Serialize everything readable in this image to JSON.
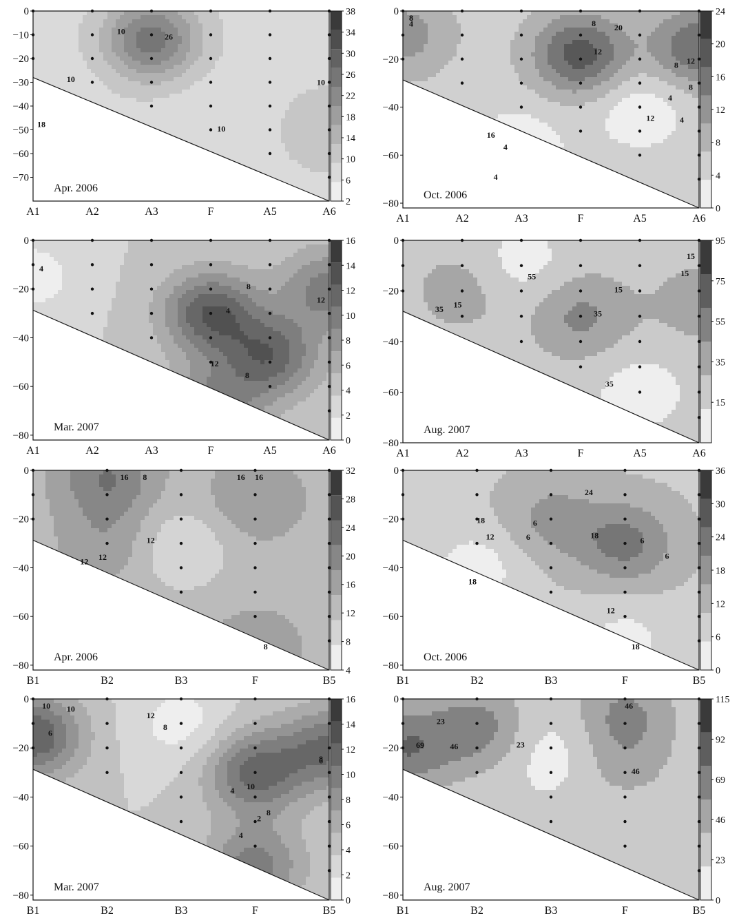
{
  "figure": {
    "colors": {
      "frame": "#111111",
      "contour": "#1a1a1a",
      "dot": "#111111",
      "shade_light": "#eeeeee",
      "shade_dark": "#3a3a3a"
    }
  },
  "chart_data": [
    {
      "type": "heatmap",
      "subtype": "filled-contour",
      "title": "Apr. 2006",
      "transect": "A",
      "stations": [
        "A1",
        "A2",
        "A3",
        "F",
        "A5",
        "A6"
      ],
      "ylim": [
        -80,
        0
      ],
      "yticks": [
        "0",
        "−10",
        "−20",
        "−30",
        "−40",
        "−50",
        "−60",
        "−70"
      ],
      "yticks_values": [
        0,
        -10,
        -20,
        -30,
        -40,
        -50,
        -60,
        -70
      ],
      "colorbar": {
        "levels": [
          2,
          6,
          10,
          14,
          18,
          22,
          26,
          30,
          34,
          38
        ],
        "labels": [
          "2",
          "6",
          "10",
          "14",
          "18",
          "22",
          "26",
          "30",
          "34",
          "38"
        ]
      },
      "contour_labels": [
        "26",
        "18",
        "10",
        "10",
        "10",
        "10"
      ],
      "peaks": [
        {
          "station": "A3",
          "depth": -12,
          "value": 28
        },
        {
          "station": "A1",
          "depth": -40,
          "value": 6
        },
        {
          "station": "A6",
          "depth": -50,
          "value": 14
        },
        {
          "station": "F",
          "depth": -45,
          "value": 6
        }
      ],
      "background": 8
    },
    {
      "type": "heatmap",
      "subtype": "filled-contour",
      "title": "Oct. 2006",
      "transect": "A",
      "stations": [
        "A1",
        "A2",
        "A3",
        "F",
        "A5",
        "A6"
      ],
      "ylim": [
        -82,
        0
      ],
      "yticks": [
        "0",
        "−20",
        "−40",
        "−60",
        "−80"
      ],
      "yticks_values": [
        0,
        -20,
        -40,
        -60,
        -80
      ],
      "colorbar": {
        "levels": [
          0,
          4,
          8,
          12,
          16,
          20,
          24
        ],
        "labels": [
          "0",
          "4",
          "8",
          "12",
          "16",
          "20",
          "24"
        ]
      },
      "contour_labels": [
        "12",
        "8",
        "8",
        "12",
        "16",
        "20",
        "12",
        "8",
        "4",
        "4",
        "8",
        "8",
        "4",
        "4",
        "4"
      ],
      "peaks": [
        {
          "station": "F",
          "depth": -18,
          "value": 22
        },
        {
          "station": "A6",
          "depth": -15,
          "value": 20
        },
        {
          "station": "A1",
          "depth": -10,
          "value": 14
        },
        {
          "station": "A5",
          "depth": -40,
          "value": 1
        },
        {
          "station": "A3",
          "depth": -55,
          "value": 2
        }
      ],
      "background": 6
    },
    {
      "type": "heatmap",
      "subtype": "filled-contour",
      "title": "Mar. 2007",
      "transect": "A",
      "stations": [
        "A1",
        "A2",
        "A3",
        "F",
        "A5",
        "A6"
      ],
      "ylim": [
        -82,
        0
      ],
      "yticks": [
        "0",
        "−20",
        "−40",
        "−60",
        "−80"
      ],
      "yticks_values": [
        0,
        -20,
        -40,
        -60,
        -80
      ],
      "colorbar": {
        "levels": [
          0,
          2,
          4,
          6,
          8,
          10,
          12,
          14,
          16
        ],
        "labels": [
          "0",
          "2",
          "4",
          "6",
          "8",
          "10",
          "12",
          "14",
          "16"
        ]
      },
      "contour_labels": [
        "4",
        "8",
        "12",
        "12",
        "4",
        "8"
      ],
      "peaks": [
        {
          "station": "F",
          "depth": -30,
          "value": 14
        },
        {
          "station": "A5",
          "depth": -48,
          "value": 13
        },
        {
          "station": "F",
          "depth": -70,
          "value": 11
        },
        {
          "station": "A6",
          "depth": -20,
          "value": 11
        },
        {
          "station": "A1",
          "depth": -15,
          "value": 1
        }
      ],
      "background": 4
    },
    {
      "type": "heatmap",
      "subtype": "filled-contour",
      "title": "Aug. 2007",
      "transect": "A",
      "stations": [
        "A1",
        "A2",
        "A3",
        "F",
        "A5",
        "A6"
      ],
      "ylim": [
        -80,
        0
      ],
      "yticks": [
        "0",
        "−20",
        "−40",
        "−60",
        "−80"
      ],
      "yticks_values": [
        0,
        -20,
        -40,
        -60,
        -80
      ],
      "colorbar": {
        "levels": [
          5,
          15,
          35,
          55,
          75,
          95
        ],
        "labels": [
          "15",
          "35",
          "55",
          "75",
          "95"
        ]
      },
      "contour_labels": [
        "35",
        "35",
        "15",
        "55",
        "35",
        "15",
        "15",
        "15"
      ],
      "peaks": [
        {
          "station": "F",
          "depth": -30,
          "value": 60
        },
        {
          "station": "A2",
          "depth": -20,
          "value": 45
        },
        {
          "station": "A6",
          "depth": -25,
          "value": 45
        },
        {
          "station": "A3",
          "depth": -10,
          "value": 5
        },
        {
          "station": "A5",
          "depth": -60,
          "value": 5
        }
      ],
      "background": 25
    },
    {
      "type": "heatmap",
      "subtype": "filled-contour",
      "title": "Apr. 2006",
      "transect": "B",
      "stations": [
        "B1",
        "B2",
        "B3",
        "F",
        "B5"
      ],
      "ylim": [
        -82,
        0
      ],
      "yticks": [
        "0",
        "−20",
        "−40",
        "−60",
        "−80"
      ],
      "yticks_values": [
        0,
        -20,
        -40,
        -60,
        -80
      ],
      "colorbar": {
        "levels": [
          4,
          8,
          12,
          16,
          20,
          24,
          28,
          32
        ],
        "labels": [
          "4",
          "8",
          "12",
          "16",
          "20",
          "24",
          "28",
          "32"
        ]
      },
      "contour_labels": [
        "16",
        "12",
        "16",
        "8",
        "12",
        "8",
        "12",
        "16"
      ],
      "peaks": [
        {
          "station": "B2",
          "depth": -3,
          "value": 24
        },
        {
          "station": "B2",
          "depth": -30,
          "value": 19
        },
        {
          "station": "F",
          "depth": -12,
          "value": 20
        },
        {
          "station": "F",
          "depth": -73,
          "value": 19
        },
        {
          "station": "B3",
          "depth": -32,
          "value": 8
        }
      ],
      "background": 14
    },
    {
      "type": "heatmap",
      "subtype": "filled-contour",
      "title": "Oct. 2006",
      "transect": "B",
      "stations": [
        "B1",
        "B2",
        "B3",
        "F",
        "B5"
      ],
      "ylim": [
        -82,
        0
      ],
      "yticks": [
        "0",
        "−20",
        "−40",
        "−60",
        "−80"
      ],
      "yticks_values": [
        0,
        -20,
        -40,
        -60,
        -80
      ],
      "colorbar": {
        "levels": [
          0,
          6,
          12,
          18,
          24,
          30,
          36
        ],
        "labels": [
          "0",
          "6",
          "12",
          "18",
          "24",
          "30",
          "36"
        ]
      },
      "contour_labels": [
        "6",
        "6",
        "18",
        "18",
        "18",
        "24",
        "18",
        "12",
        "6",
        "6",
        "12"
      ],
      "peaks": [
        {
          "station": "F",
          "depth": -30,
          "value": 26
        },
        {
          "station": "B3",
          "depth": -20,
          "value": 20
        },
        {
          "station": "B2",
          "depth": -40,
          "value": 3
        },
        {
          "station": "F",
          "depth": -70,
          "value": 4
        }
      ],
      "background": 11
    },
    {
      "type": "heatmap",
      "subtype": "filled-contour",
      "title": "Mar. 2007",
      "transect": "B",
      "stations": [
        "B1",
        "B2",
        "B3",
        "F",
        "B5"
      ],
      "ylim": [
        -82,
        0
      ],
      "yticks": [
        "0",
        "−20",
        "−40",
        "−60",
        "−80"
      ],
      "yticks_values": [
        0,
        -20,
        -40,
        -60,
        -80
      ],
      "colorbar": {
        "levels": [
          0,
          2,
          4,
          6,
          8,
          10,
          12,
          14,
          16
        ],
        "labels": [
          "0",
          "2",
          "4",
          "6",
          "8",
          "10",
          "12",
          "14",
          "16"
        ]
      },
      "contour_labels": [
        "6",
        "4",
        "2",
        "8",
        "12",
        "10",
        "10",
        "4",
        "6",
        "8",
        "10",
        "8"
      ],
      "peaks": [
        {
          "station": "B1",
          "depth": -15,
          "value": 14
        },
        {
          "station": "F",
          "depth": -30,
          "value": 13
        },
        {
          "station": "F",
          "depth": -68,
          "value": 11
        },
        {
          "station": "B5",
          "depth": -20,
          "value": 12
        },
        {
          "station": "B3",
          "depth": -10,
          "value": 1
        }
      ],
      "background": 4
    },
    {
      "type": "heatmap",
      "subtype": "filled-contour",
      "title": "Aug. 2007",
      "transect": "B",
      "stations": [
        "B1",
        "B2",
        "B3",
        "F",
        "B5"
      ],
      "ylim": [
        -82,
        0
      ],
      "yticks": [
        "0",
        "−20",
        "−40",
        "−60",
        "−80"
      ],
      "yticks_values": [
        0,
        -20,
        -40,
        -60,
        -80
      ],
      "colorbar": {
        "levels": [
          0,
          23,
          46,
          69,
          92,
          115
        ],
        "labels": [
          "0",
          "23",
          "46",
          "69",
          "92",
          "115"
        ]
      },
      "contour_labels": [
        "69",
        "46",
        "46",
        "46",
        "23",
        "23"
      ],
      "peaks": [
        {
          "station": "B1",
          "depth": -20,
          "value": 90
        },
        {
          "station": "B2",
          "depth": -12,
          "value": 80
        },
        {
          "station": "F",
          "depth": -5,
          "value": 70
        },
        {
          "station": "F",
          "depth": -25,
          "value": 55
        },
        {
          "station": "B3",
          "depth": -22,
          "value": 10
        }
      ],
      "background": 30
    }
  ]
}
